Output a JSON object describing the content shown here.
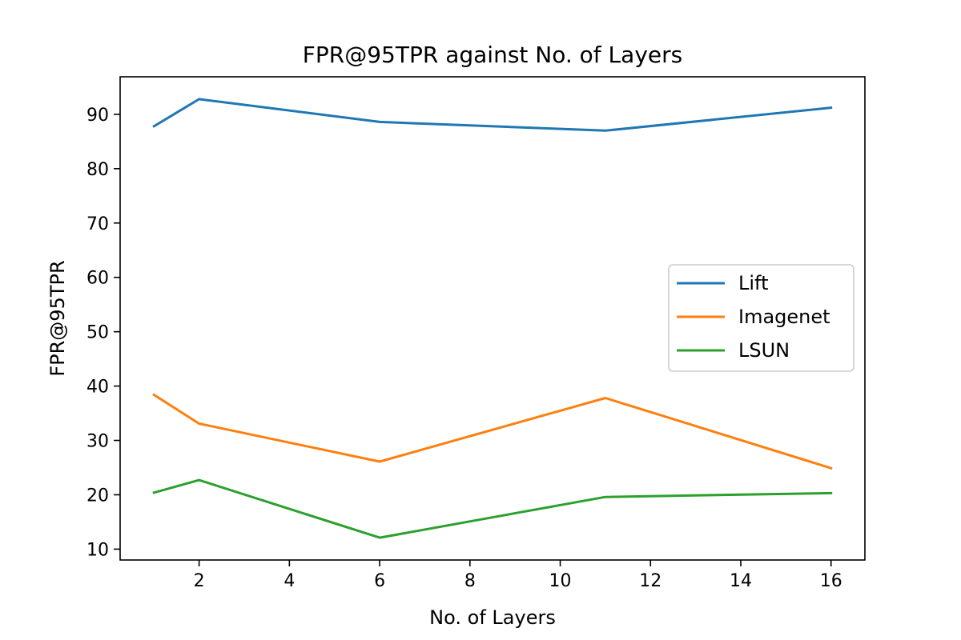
{
  "chart_data": {
    "type": "line",
    "title": "FPR@95TPR against No. of Layers",
    "xlabel": "No. of Layers",
    "ylabel": "FPR@95TPR",
    "x": [
      1,
      2,
      6,
      11,
      16
    ],
    "series": [
      {
        "name": "Lift",
        "color": "#1f77b4",
        "values": [
          87.8,
          92.8,
          88.6,
          87.0,
          91.2
        ]
      },
      {
        "name": "Imagenet",
        "color": "#ff7f0e",
        "values": [
          38.4,
          33.1,
          26.1,
          37.8,
          24.9
        ]
      },
      {
        "name": "LSUN",
        "color": "#2ca02c",
        "values": [
          20.4,
          22.7,
          12.1,
          19.6,
          20.3
        ]
      }
    ],
    "xlim": [
      0.25,
      16.75
    ],
    "ylim": [
      8.0,
      96.9
    ],
    "xticks": [
      2,
      4,
      6,
      8,
      10,
      12,
      14,
      16
    ],
    "yticks": [
      10,
      20,
      30,
      40,
      50,
      60,
      70,
      80,
      90
    ],
    "grid": false,
    "legend_position": "center-right"
  }
}
